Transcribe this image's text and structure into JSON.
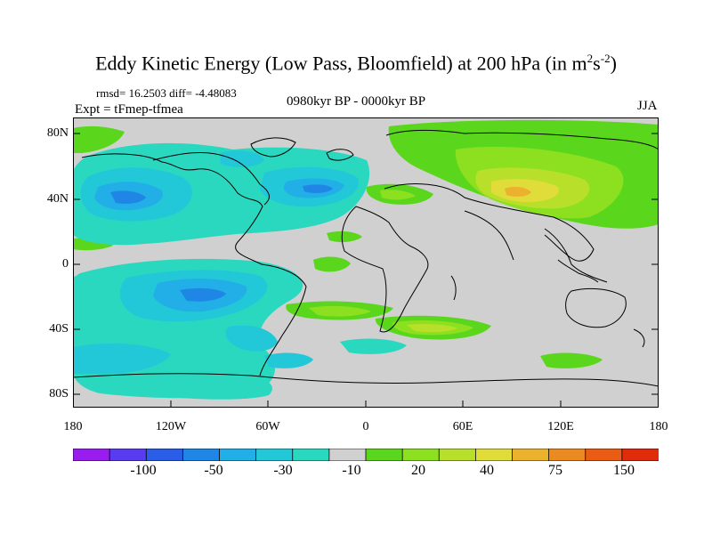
{
  "title": {
    "main": "Eddy Kinetic Energy (Low Pass, Bloomfield) at 200 hPa (in m",
    "sup1": "2",
    "mid": "s",
    "sup2": "-2",
    "end": ")"
  },
  "stats": "rmsd= 16.2503  diff= -4.48083",
  "experiment": "Expt = tFmep-tfmea",
  "period": "0980kyr BP - 0000kyr BP",
  "season": "JJA",
  "axes": {
    "y_labels": [
      "80N",
      "40N",
      "0",
      "40S",
      "80S"
    ],
    "x_labels": [
      "180",
      "120W",
      "60W",
      "0",
      "60E",
      "120E",
      "180"
    ]
  },
  "colorbar": {
    "colors": [
      "#9a1df0",
      "#5a3cf0",
      "#2a5ee8",
      "#1f86e6",
      "#22aee6",
      "#22c8d8",
      "#2ad8c0",
      "#d0d0d0",
      "#5ad71c",
      "#8ce020",
      "#b8e02a",
      "#e0dc3a",
      "#ecb22e",
      "#ec8a22",
      "#ea5c14",
      "#e02c0a"
    ],
    "labels": [
      "-100",
      "-50",
      "-30",
      "-10",
      "20",
      "40",
      "75",
      "150"
    ]
  },
  "colors": {
    "land_background": "#d0d0d0",
    "neg_light": "#2ad8c0",
    "neg_mid": "#22c8d8",
    "neg_strong": "#22aee6",
    "neg_stronger": "#1f86e6",
    "pos_light": "#5ad71c",
    "pos_mid": "#8ce020",
    "pos_strong": "#b8e02a",
    "pos_stronger": "#e0dc3a",
    "pos_peak": "#ecb22e"
  }
}
